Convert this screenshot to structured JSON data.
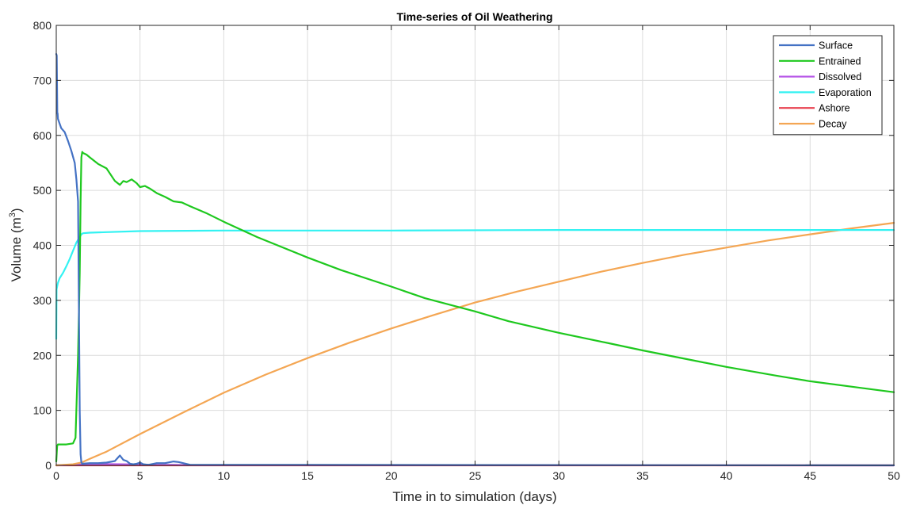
{
  "chart_data": {
    "type": "line",
    "title": "Time-series of Oil Weathering",
    "xlabel": "Time in to simulation (days)",
    "ylabel": "Volume (m",
    "ylabel_sup": "3",
    "ylabel_end": ")",
    "xlim": [
      0,
      50
    ],
    "ylim": [
      0,
      800
    ],
    "xticks": [
      0,
      5,
      10,
      15,
      20,
      25,
      30,
      35,
      40,
      45,
      50
    ],
    "yticks": [
      0,
      100,
      200,
      300,
      400,
      500,
      600,
      700,
      800
    ],
    "grid": true,
    "legend_position": "top-right",
    "series": [
      {
        "name": "Surface",
        "color": "#4472c4",
        "x": [
          0,
          0.03,
          0.06,
          0.08,
          0.1,
          0.3,
          0.5,
          0.7,
          0.9,
          1.1,
          1.2,
          1.3,
          1.35,
          1.4,
          1.45,
          1.5,
          1.55,
          1.6,
          2.0,
          2.5,
          3.0,
          3.5,
          3.8,
          4.0,
          4.2,
          4.4,
          4.6,
          4.8,
          5.0,
          5.2,
          5.5,
          6.0,
          6.5,
          7.0,
          7.3,
          8.0,
          50
        ],
        "y": [
          748,
          745,
          640,
          640,
          630,
          613,
          606,
          590,
          572,
          550,
          520,
          480,
          300,
          100,
          20,
          5,
          3,
          3,
          4,
          4,
          5,
          8,
          18,
          10,
          8,
          3,
          2,
          3,
          5,
          2,
          1,
          4,
          4,
          7,
          6,
          1,
          0
        ]
      },
      {
        "name": "Entrained",
        "color": "#1ec81e",
        "x": [
          0,
          0.05,
          0.1,
          0.3,
          0.6,
          1.0,
          1.15,
          1.3,
          1.4,
          1.45,
          1.5,
          1.55,
          1.6,
          1.8,
          2.0,
          2.5,
          3.0,
          3.5,
          3.8,
          4.0,
          4.2,
          4.5,
          4.8,
          5.0,
          5.3,
          5.6,
          6.0,
          6.5,
          7.0,
          7.5,
          8.0,
          9.0,
          10.0,
          12.0,
          15.0,
          17.0,
          20.0,
          22.0,
          25.0,
          27.0,
          30.0,
          33.0,
          35.0,
          38.0,
          40.0,
          43.0,
          45.0,
          48.0,
          50.0
        ],
        "y": [
          7,
          35,
          38,
          38,
          38,
          40,
          50,
          200,
          350,
          480,
          560,
          570,
          568,
          565,
          560,
          548,
          540,
          517,
          510,
          517,
          515,
          520,
          513,
          506,
          508,
          503,
          495,
          488,
          480,
          478,
          471,
          458,
          443,
          415,
          378,
          355,
          325,
          304,
          280,
          262,
          241,
          222,
          209,
          191,
          179,
          163,
          153,
          141,
          133
        ]
      },
      {
        "name": "Dissolved",
        "color": "#b95ce8",
        "x": [
          0,
          0.5,
          1.0,
          2.0,
          3.0,
          4.0,
          5.0,
          6.0,
          7.0,
          8.0,
          9.0,
          50
        ],
        "y": [
          0,
          0.5,
          1,
          2,
          2.5,
          2,
          1.5,
          1,
          0.8,
          0.5,
          0.3,
          0
        ]
      },
      {
        "name": "Evaporation",
        "color": "#33f2f2",
        "x": [
          0,
          0.02,
          0.05,
          0.1,
          0.2,
          0.4,
          0.6,
          0.8,
          1.0,
          1.2,
          1.4,
          1.5,
          1.6,
          2.0,
          3.0,
          5.0,
          10.0,
          20.0,
          30.0,
          40.0,
          50.0
        ],
        "y": [
          230,
          320,
          325,
          332,
          340,
          350,
          362,
          375,
          390,
          405,
          415,
          420,
          422,
          423,
          424,
          426,
          427,
          427,
          428,
          428,
          428
        ]
      },
      {
        "name": "Ashore",
        "color": "#e8414f",
        "x": [
          0,
          50
        ],
        "y": [
          0,
          0
        ]
      },
      {
        "name": "Decay",
        "color": "#f4a653",
        "x": [
          0,
          1.0,
          1.5,
          2.0,
          3.0,
          5.0,
          7.5,
          10.0,
          12.5,
          15.0,
          17.5,
          20.0,
          22.5,
          25.0,
          27.5,
          30.0,
          32.5,
          35.0,
          37.5,
          40.0,
          42.5,
          45.0,
          47.5,
          50.0
        ],
        "y": [
          0,
          2,
          5,
          12,
          25,
          57,
          95,
          132,
          165,
          195,
          223,
          249,
          273,
          296,
          316,
          334,
          352,
          368,
          383,
          396,
          409,
          420,
          431,
          441
        ]
      }
    ]
  }
}
